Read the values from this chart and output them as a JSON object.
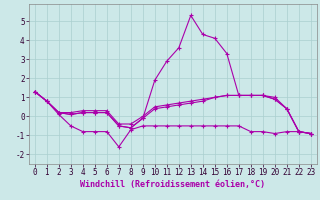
{
  "xlabel": "Windchill (Refroidissement éolien,°C)",
  "bg_color": "#cce8e8",
  "grid_color": "#aacfcf",
  "line_color": "#aa00aa",
  "spine_color": "#888888",
  "xlim": [
    -0.5,
    23.5
  ],
  "ylim": [
    -2.5,
    5.9
  ],
  "yticks": [
    -2,
    -1,
    0,
    1,
    2,
    3,
    4,
    5
  ],
  "xticks": [
    0,
    1,
    2,
    3,
    4,
    5,
    6,
    7,
    8,
    9,
    10,
    11,
    12,
    13,
    14,
    15,
    16,
    17,
    18,
    19,
    20,
    21,
    22,
    23
  ],
  "series": [
    [
      1.3,
      0.8,
      0.2,
      0.1,
      0.2,
      0.2,
      0.2,
      -0.5,
      -0.6,
      -0.1,
      0.4,
      0.5,
      0.6,
      0.7,
      0.8,
      1.0,
      1.1,
      1.1,
      1.1,
      1.1,
      0.9,
      0.4,
      -0.8,
      -0.9
    ],
    [
      1.3,
      0.8,
      0.1,
      -0.5,
      -0.8,
      -0.8,
      -0.8,
      -1.6,
      -0.7,
      -0.5,
      -0.5,
      -0.5,
      -0.5,
      -0.5,
      -0.5,
      -0.5,
      -0.5,
      -0.5,
      -0.8,
      -0.8,
      -0.9,
      -0.8,
      -0.8,
      -0.9
    ],
    [
      1.3,
      0.8,
      0.2,
      0.1,
      0.2,
      0.2,
      0.2,
      -0.5,
      -0.6,
      -0.1,
      1.9,
      2.9,
      3.6,
      5.3,
      4.3,
      4.1,
      3.3,
      1.1,
      1.1,
      1.1,
      1.0,
      0.4,
      -0.8,
      -0.9
    ],
    [
      1.3,
      0.8,
      0.2,
      0.2,
      0.3,
      0.3,
      0.3,
      -0.4,
      -0.4,
      0.0,
      0.5,
      0.6,
      0.7,
      0.8,
      0.9,
      1.0,
      1.1,
      1.1,
      1.1,
      1.1,
      0.9,
      0.4,
      -0.8,
      -0.9
    ]
  ],
  "marker": "+",
  "linewidth": 0.8,
  "markersize": 2.5,
  "tick_fontsize": 5.5,
  "xlabel_fontsize": 6.0
}
